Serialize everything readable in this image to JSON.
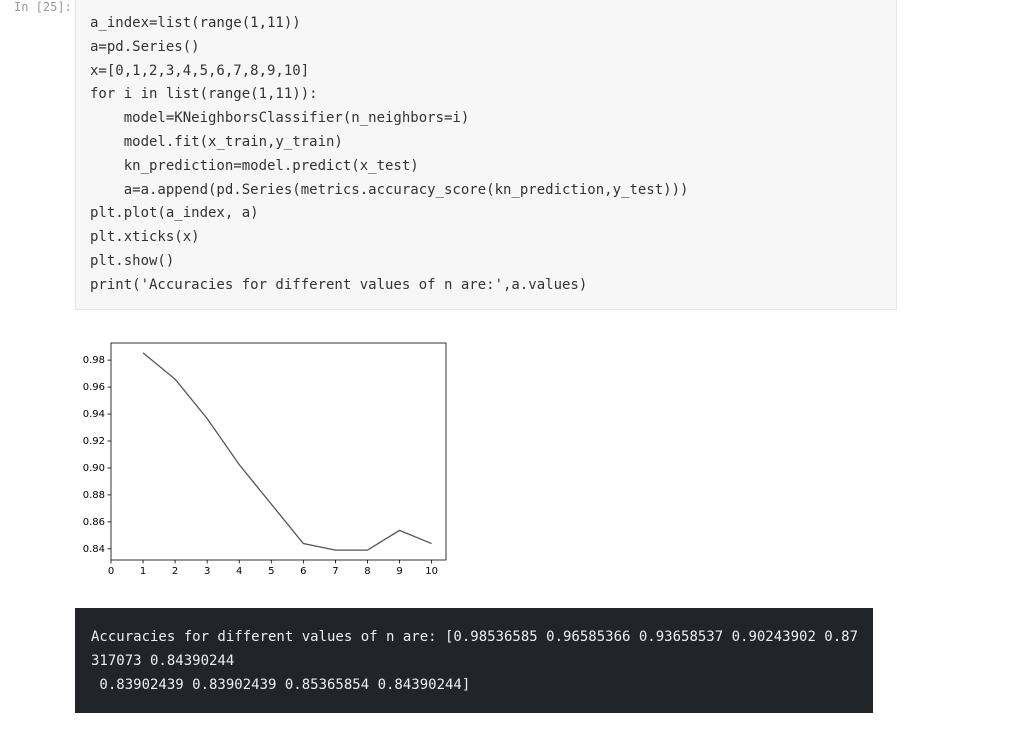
{
  "prompt": "In [25]:",
  "code": [
    "a_index=list(range(1,11))",
    "a=pd.Series()",
    "x=[0,1,2,3,4,5,6,7,8,9,10]",
    "for i in list(range(1,11)):",
    "    model=KNeighborsClassifier(n_neighbors=i)",
    "    model.fit(x_train,y_train)",
    "    kn_prediction=model.predict(x_test)",
    "    a=a.append(pd.Series(metrics.accuracy_score(kn_prediction,y_test)))",
    "plt.plot(a_index, a)",
    "plt.xticks(x)",
    "plt.show()",
    "print('Accuracies for different values of n are:',a.values)"
  ],
  "chart_data": {
    "type": "line",
    "x": [
      1,
      2,
      3,
      4,
      5,
      6,
      7,
      8,
      9,
      10
    ],
    "series": [
      {
        "color": "#555555",
        "values": [
          0.98536585,
          0.96585366,
          0.93658537,
          0.90243902,
          0.87317073,
          0.84390244,
          0.83902439,
          0.83902439,
          0.85365854,
          0.84390244
        ]
      }
    ],
    "xlim": [
      0,
      10.45
    ],
    "xticks": [
      0,
      1,
      2,
      3,
      4,
      5,
      6,
      7,
      8,
      9,
      10
    ],
    "ylim": [
      0.8317,
      0.9927
    ],
    "yticks": [
      0.84,
      0.86,
      0.88,
      {
        "value": 0.9,
        "label": "0.90"
      },
      0.92,
      0.94,
      0.96,
      0.98
    ]
  },
  "output": [
    "Accuracies for different values of n are: [0.98536585 0.96585366 0.93658537 0.90243902 0.87",
    "317073 0.84390244",
    " 0.83902439 0.83902439 0.85365854 0.84390244]"
  ]
}
